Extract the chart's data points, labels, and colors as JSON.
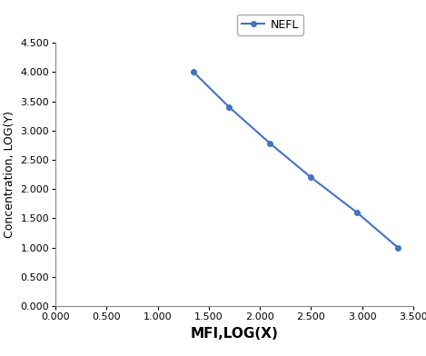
{
  "x": [
    1.35,
    1.7,
    2.1,
    2.5,
    2.95,
    3.35
  ],
  "y": [
    4.0,
    3.4,
    2.78,
    2.2,
    1.6,
    1.0
  ],
  "line_color": "#4472C4",
  "marker": "o",
  "marker_size": 4,
  "line_width": 1.5,
  "xlabel": "MFI,LOG(X)",
  "ylabel": "Concentration, LOG(Y)",
  "legend_label": "NEFL",
  "xlim": [
    0.0,
    3.5
  ],
  "ylim": [
    0.0,
    4.5
  ],
  "xticks": [
    0.0,
    0.5,
    1.0,
    1.5,
    2.0,
    2.5,
    3.0,
    3.5
  ],
  "yticks": [
    0.0,
    0.5,
    1.0,
    1.5,
    2.0,
    2.5,
    3.0,
    3.5,
    4.0,
    4.5
  ],
  "xlabel_fontsize": 11,
  "ylabel_fontsize": 9,
  "tick_fontsize": 8,
  "legend_fontsize": 9,
  "background_color": "#ffffff",
  "spine_color": "#888888"
}
